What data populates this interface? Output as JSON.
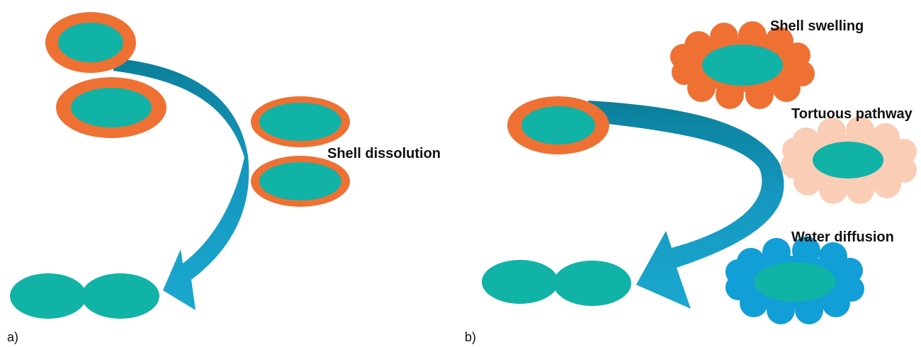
{
  "panels": {
    "a": {
      "letter": "a)",
      "label": "Shell dissolution"
    },
    "b": {
      "letter": "b)",
      "labels": {
        "swelling": "Shell swelling",
        "tortuous": "Tortuous pathway",
        "water": "Water diffusion"
      }
    }
  },
  "colors": {
    "shell": "#ee7133",
    "core": "#10b3a6",
    "arrow_light": "#1aa8cf",
    "arrow_dark": "#0b7f9a",
    "shell_light": "#f9cdb6",
    "water_shell": "#129ed6"
  }
}
